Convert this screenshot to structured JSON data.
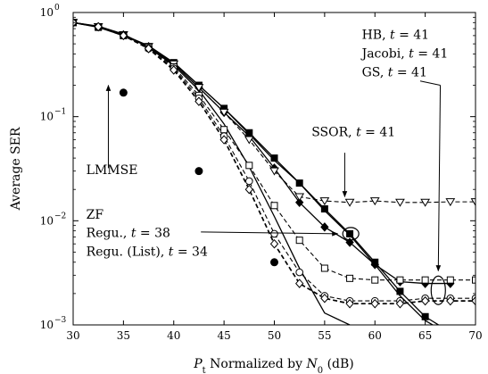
{
  "chart_data": {
    "type": "line",
    "xlabel": "P_t Normalized by N_0 (dB)",
    "ylabel": "Average SER",
    "x_scale": "linear",
    "y_scale": "log",
    "xlim": [
      30,
      70
    ],
    "ylim": [
      0.001,
      1
    ],
    "x_ticks": [
      30,
      35,
      40,
      45,
      50,
      55,
      60,
      65,
      70
    ],
    "y_ticks": [
      {
        "value": 1,
        "base": "10",
        "exp": "0"
      },
      {
        "value": 0.1,
        "base": "10",
        "exp": "−1"
      },
      {
        "value": 0.01,
        "base": "10",
        "exp": "−2"
      },
      {
        "value": 0.001,
        "base": "10",
        "exp": "−3"
      }
    ],
    "grid": false,
    "series": [
      {
        "key": "lmmse",
        "style": "solid",
        "width": 1.3,
        "marker": "none",
        "x": [
          30,
          32.5,
          35,
          37.5,
          40,
          42.5,
          45,
          47.5,
          50,
          52.5,
          55,
          57.5
        ],
        "y": [
          0.8,
          0.74,
          0.62,
          0.46,
          0.31,
          0.18,
          0.085,
          0.033,
          0.011,
          0.0035,
          0.0013,
          0.001
        ]
      },
      {
        "key": "zf",
        "style": "solid",
        "width": 1.3,
        "marker": "none",
        "x": [
          30,
          32.5,
          35,
          37.5,
          40,
          42.5,
          45,
          47.5,
          50,
          52.5,
          55,
          57.5,
          60,
          62.5,
          65,
          67.5
        ],
        "y": [
          0.8,
          0.73,
          0.61,
          0.48,
          0.33,
          0.2,
          0.12,
          0.068,
          0.038,
          0.023,
          0.0125,
          0.0073,
          0.0038,
          0.0019,
          0.0011,
          0.0008
        ]
      },
      {
        "key": "regu",
        "style": "solid",
        "width": 1.3,
        "marker": "square",
        "marker_fill": "#000",
        "x": [
          30,
          32.5,
          35,
          37.5,
          40,
          42.5,
          45,
          47.5,
          50,
          52.5,
          55,
          57.5,
          60,
          62.5,
          65,
          67.5
        ],
        "y": [
          0.8,
          0.72,
          0.6,
          0.47,
          0.33,
          0.2,
          0.12,
          0.07,
          0.04,
          0.023,
          0.013,
          0.0075,
          0.004,
          0.0021,
          0.0012,
          0.00085
        ]
      },
      {
        "key": "regu_list",
        "style": "solid",
        "width": 1.3,
        "marker": "diamond",
        "marker_fill": "#000",
        "x": [
          30,
          32.5,
          35,
          37.5,
          40,
          42.5,
          45,
          47.5,
          50,
          52.5,
          55,
          57.5,
          60,
          62.5,
          65,
          67.5
        ],
        "y": [
          0.8,
          0.73,
          0.61,
          0.47,
          0.32,
          0.19,
          0.11,
          0.065,
          0.032,
          0.015,
          0.0087,
          0.0062,
          0.0038,
          0.0026,
          0.0025,
          0.0025
        ]
      },
      {
        "key": "ssor",
        "style": "dashed",
        "width": 1.1,
        "marker": "triangle-down",
        "marker_fill": "#fff",
        "x": [
          30,
          32.5,
          35,
          37.5,
          40,
          42.5,
          45,
          47.5,
          50,
          52.5,
          55,
          57.5,
          60,
          62.5,
          65,
          67.5,
          70
        ],
        "y": [
          0.8,
          0.73,
          0.61,
          0.47,
          0.32,
          0.19,
          0.11,
          0.06,
          0.03,
          0.017,
          0.0155,
          0.015,
          0.0155,
          0.015,
          0.015,
          0.0152,
          0.0152
        ]
      },
      {
        "key": "gs",
        "style": "dashed",
        "width": 1.1,
        "marker": "square",
        "marker_fill": "#fff",
        "x": [
          30,
          32.5,
          35,
          37.5,
          40,
          42.5,
          45,
          47.5,
          50,
          52.5,
          55,
          57.5,
          60,
          62.5,
          65,
          67.5,
          70
        ],
        "y": [
          0.8,
          0.73,
          0.6,
          0.46,
          0.3,
          0.16,
          0.075,
          0.034,
          0.014,
          0.0065,
          0.0035,
          0.0028,
          0.0027,
          0.0027,
          0.0027,
          0.0027,
          0.0027
        ]
      },
      {
        "key": "jacobi",
        "style": "dashed",
        "width": 1.1,
        "marker": "circle",
        "marker_fill": "#fff",
        "x": [
          30,
          32.5,
          35,
          37.5,
          40,
          42.5,
          45,
          47.5,
          50,
          52.5,
          55,
          57.5,
          60,
          62.5,
          65,
          67.5,
          70
        ],
        "y": [
          0.8,
          0.73,
          0.6,
          0.45,
          0.29,
          0.15,
          0.065,
          0.024,
          0.0075,
          0.0032,
          0.0019,
          0.0017,
          0.0017,
          0.0017,
          0.0018,
          0.0018,
          0.0018
        ]
      },
      {
        "key": "hb",
        "style": "dashed",
        "width": 1.7,
        "marker": "diamond",
        "marker_fill": "#fff",
        "x": [
          30,
          32.5,
          35,
          37.5,
          40,
          42.5,
          45,
          47.5,
          50,
          52.5,
          55,
          57.5,
          60,
          62.5,
          65,
          67.5,
          70
        ],
        "y": [
          0.8,
          0.73,
          0.6,
          0.45,
          0.28,
          0.14,
          0.06,
          0.02,
          0.006,
          0.0025,
          0.0018,
          0.0016,
          0.0016,
          0.0016,
          0.0017,
          0.0017,
          0.0017
        ]
      }
    ],
    "annotations": [
      {
        "key": "hb",
        "parts": [
          {
            "t": "HB, "
          },
          {
            "t": "t",
            "i": true
          },
          {
            "t": " = 41"
          }
        ],
        "at": [
          58.7,
          0.56
        ]
      },
      {
        "key": "jacobi",
        "parts": [
          {
            "t": "Jacobi, "
          },
          {
            "t": "t",
            "i": true
          },
          {
            "t": " = 41"
          }
        ],
        "at": [
          58.7,
          0.37
        ]
      },
      {
        "key": "gs",
        "parts": [
          {
            "t": "GS, "
          },
          {
            "t": "t",
            "i": true
          },
          {
            "t": " = 41"
          }
        ],
        "at": [
          58.7,
          0.245
        ]
      },
      {
        "key": "ssor",
        "parts": [
          {
            "t": "SSOR, "
          },
          {
            "t": "t",
            "i": true
          },
          {
            "t": " = 41"
          }
        ],
        "at": [
          53.7,
          0.065
        ]
      },
      {
        "key": "lmmse",
        "parts": [
          {
            "t": "LMMSE"
          }
        ],
        "at": [
          31.3,
          0.028
        ]
      },
      {
        "key": "zf",
        "parts": [
          {
            "t": "ZF"
          }
        ],
        "at": [
          31.3,
          0.0105
        ]
      },
      {
        "key": "regu",
        "parts": [
          {
            "t": "Regu., "
          },
          {
            "t": "t",
            "i": true
          },
          {
            "t": " = 38"
          }
        ],
        "at": [
          31.3,
          0.007
        ]
      },
      {
        "key": "regu-list",
        "parts": [
          {
            "t": "Regu. (List), "
          },
          {
            "t": "t",
            "i": true
          },
          {
            "t": " = 34"
          }
        ],
        "at": [
          31.3,
          0.0046
        ]
      }
    ]
  }
}
